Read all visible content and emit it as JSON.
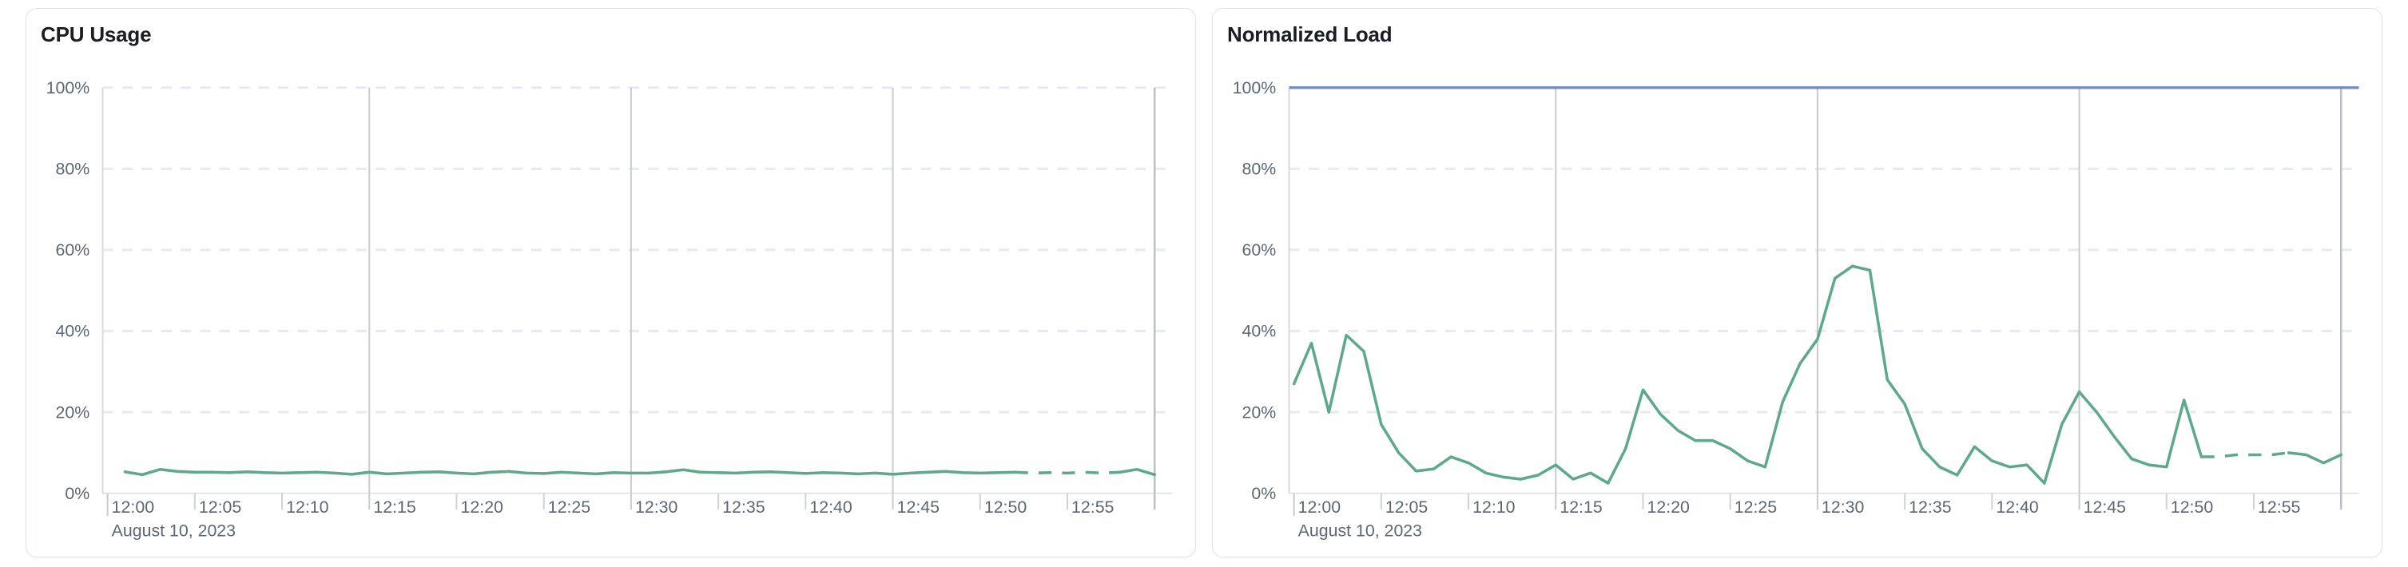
{
  "page": {
    "background": "#ffffff"
  },
  "chart_data": [
    {
      "type": "line",
      "title": "CPU Usage",
      "xlabel": "",
      "ylabel": "",
      "legend": "none",
      "grid": "on",
      "x_axis": {
        "date_label": "August 10, 2023",
        "tick_minutes": [
          0,
          5,
          10,
          15,
          20,
          25,
          30,
          35,
          40,
          45,
          50,
          55
        ],
        "tick_labels": [
          "12:00",
          "12:05",
          "12:10",
          "12:15",
          "12:20",
          "12:25",
          "12:30",
          "12:35",
          "12:40",
          "12:45",
          "12:50",
          "12:55"
        ],
        "major_gridline_minutes": [
          15,
          30,
          45
        ],
        "start_minute": 0,
        "end_minute": 60
      },
      "y_axis": {
        "range": [
          0,
          100
        ],
        "unit": "%",
        "ticks": [
          0,
          20,
          40,
          60,
          80,
          100
        ],
        "tick_labels": [
          "0%",
          "20%",
          "40%",
          "60%",
          "80%",
          "100%"
        ]
      },
      "series": [
        {
          "name": "CPU Usage",
          "color": "#5fa98a",
          "start_minute": 1,
          "dash_from_minute": 52,
          "dash_to_minute": 58,
          "values": [
            5.3,
            4.6,
            5.9,
            5.4,
            5.2,
            5.2,
            5.1,
            5.3,
            5.1,
            5.0,
            5.1,
            5.2,
            5.0,
            4.7,
            5.2,
            4.8,
            5.0,
            5.2,
            5.3,
            5.0,
            4.8,
            5.2,
            5.4,
            5.0,
            4.9,
            5.2,
            5.0,
            4.8,
            5.1,
            5.0,
            5.0,
            5.3,
            5.8,
            5.2,
            5.1,
            5.0,
            5.2,
            5.3,
            5.1,
            4.9,
            5.1,
            5.0,
            4.8,
            5.0,
            4.7,
            5.0,
            5.2,
            5.4,
            5.1,
            5.0,
            5.1,
            5.2,
            5.0,
            5.1,
            5.0,
            5.2,
            5.0,
            5.2,
            5.9,
            4.6
          ]
        }
      ]
    },
    {
      "type": "line",
      "title": "Normalized Load",
      "xlabel": "",
      "ylabel": "",
      "legend": "none",
      "grid": "on",
      "x_axis": {
        "date_label": "August 10, 2023",
        "tick_minutes": [
          0,
          5,
          10,
          15,
          20,
          25,
          30,
          35,
          40,
          45,
          50,
          55
        ],
        "tick_labels": [
          "12:00",
          "12:05",
          "12:10",
          "12:15",
          "12:20",
          "12:25",
          "12:30",
          "12:35",
          "12:40",
          "12:45",
          "12:50",
          "12:55"
        ],
        "major_gridline_minutes": [
          15,
          30,
          45
        ],
        "start_minute": 0,
        "end_minute": 60
      },
      "y_axis": {
        "range": [
          0,
          100
        ],
        "unit": "%",
        "ticks": [
          0,
          20,
          40,
          60,
          80,
          100
        ],
        "tick_labels": [
          "0%",
          "20%",
          "40%",
          "60%",
          "80%",
          "100%"
        ]
      },
      "limit_line": {
        "value": 100,
        "color": "#7391c1"
      },
      "series": [
        {
          "name": "Normalized Load",
          "color": "#5fa98a",
          "start_minute": 0,
          "dash_from_minute": 52,
          "dash_to_minute": 57,
          "values": [
            27,
            37,
            20,
            39,
            35,
            17,
            10,
            5.5,
            6,
            9,
            7.5,
            5,
            4,
            3.5,
            4.5,
            7,
            3.5,
            5,
            2.5,
            11,
            25.5,
            19.5,
            15.5,
            13,
            13,
            11,
            8,
            6.5,
            22.5,
            32,
            38,
            53,
            56,
            55,
            28,
            22,
            11,
            6.5,
            4.5,
            11.5,
            8,
            6.5,
            7,
            2.5,
            17,
            25,
            20,
            14,
            8.5,
            7,
            6.5,
            23,
            9,
            9,
            9.5,
            9.5,
            9.5,
            10,
            9.5,
            7.5,
            9.5
          ]
        }
      ]
    }
  ]
}
